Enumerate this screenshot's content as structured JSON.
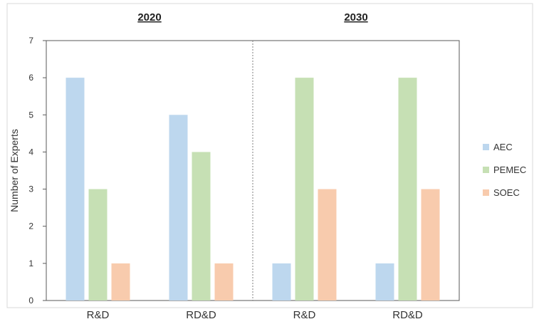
{
  "chart_data": {
    "type": "bar",
    "group_titles": [
      "2020",
      "2030"
    ],
    "categories": [
      "R&D",
      "RD&D",
      "R&D",
      "RD&D"
    ],
    "series": [
      {
        "name": "AEC",
        "values": [
          6,
          5,
          1,
          1
        ],
        "color": "#bdd7ee"
      },
      {
        "name": "PEMEC",
        "values": [
          3,
          4,
          6,
          6
        ],
        "color": "#c6e0b4"
      },
      {
        "name": "SOEC",
        "values": [
          1,
          1,
          3,
          3
        ],
        "color": "#f8cbad"
      }
    ],
    "ylabel": "Number of Experts",
    "xlabel": "",
    "ylim": [
      0,
      7
    ],
    "yticks": [
      0,
      1,
      2,
      3,
      4,
      5,
      6,
      7
    ],
    "grid": false,
    "legend_position": "right"
  }
}
